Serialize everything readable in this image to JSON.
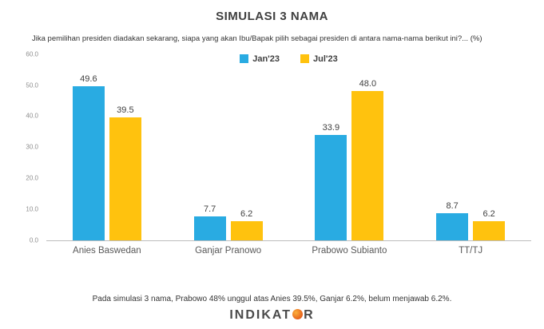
{
  "title": "SIMULASI 3 NAMA",
  "subtitle": "Jika pemilihan presiden diadakan sekarang, siapa yang akan Ibu/Bapak pilih sebagai presiden di antara nama-nama berikut ini?... (%)",
  "chart_data": {
    "type": "bar",
    "categories": [
      "Anies Baswedan",
      "Ganjar Pranowo",
      "Prabowo Subianto",
      "TT/TJ"
    ],
    "series": [
      {
        "name": "Jan'23",
        "color": "#29ABE2",
        "values": [
          49.6,
          7.7,
          33.9,
          8.7
        ]
      },
      {
        "name": "Jul'23",
        "color": "#FFC20E",
        "values": [
          39.5,
          6.2,
          48.0,
          6.2
        ]
      }
    ],
    "ylim": [
      0,
      60
    ],
    "yticks": [
      "60.0",
      "50.0",
      "40.0",
      "30.0",
      "20.0",
      "10.0",
      "0.0"
    ],
    "grid": false,
    "legend_position": "top-center"
  },
  "footer": "Pada simulasi 3 nama, Prabowo 48% unggul atas Anies 39.5%, Ganjar 6.2%, belum menjawab 6.2%.",
  "logo": {
    "pre": "INDIKAT",
    "post": "R"
  }
}
